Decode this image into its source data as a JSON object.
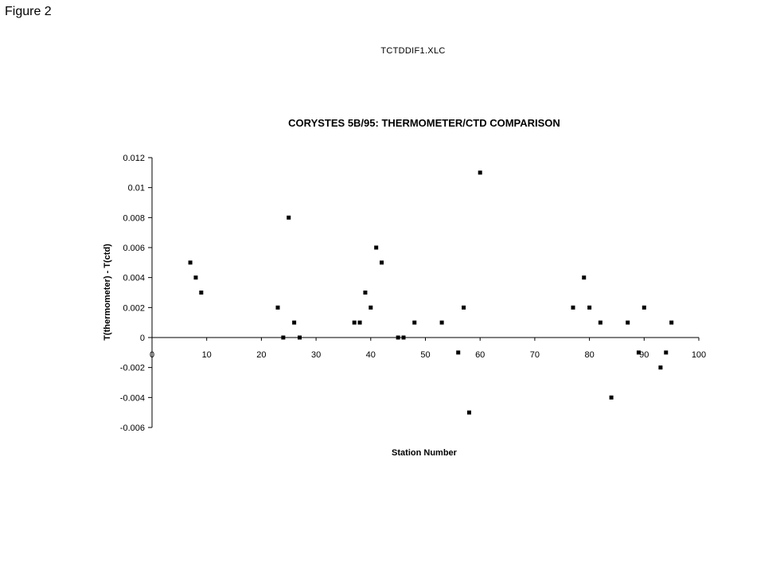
{
  "figure_label": "Figure 2",
  "file_name": "TCTDDIF1.XLC",
  "chart_data": {
    "type": "scatter",
    "title": "CORYSTES 5B/95: THERMOMETER/CTD COMPARISON",
    "xlabel": "Station Number",
    "ylabel": "T(thermometer) - T(ctd)",
    "xlim": [
      0,
      100
    ],
    "ylim": [
      -0.006,
      0.012
    ],
    "xticks": [
      0,
      10,
      20,
      30,
      40,
      50,
      60,
      70,
      80,
      90,
      100
    ],
    "xtick_labels": [
      "0",
      "10",
      "20",
      "30",
      "40",
      "50",
      "60",
      "70",
      "80",
      "90",
      "100"
    ],
    "yticks": [
      0.012,
      0.01,
      0.008,
      0.006,
      0.004,
      0.002,
      0,
      -0.002,
      -0.004,
      -0.006
    ],
    "ytick_labels": [
      "0.012",
      "0.01",
      "0.008",
      "0.006",
      "0.004",
      "0.002",
      "0",
      "-0.002",
      "-0.004",
      "-0.006"
    ],
    "grid": false,
    "marker": "square",
    "marker_color": "#000000",
    "x": [
      7,
      8,
      9,
      23,
      24,
      25,
      26,
      27,
      37,
      38,
      39,
      40,
      41,
      42,
      45,
      46,
      48,
      53,
      56,
      57,
      58,
      60,
      77,
      79,
      80,
      82,
      84,
      87,
      89,
      90,
      93,
      94,
      95
    ],
    "y": [
      0.005,
      0.004,
      0.003,
      0.002,
      0.0,
      0.008,
      0.001,
      0.0,
      0.001,
      0.001,
      0.003,
      0.002,
      0.006,
      0.005,
      0.0,
      0.0,
      0.001,
      0.001,
      -0.001,
      0.002,
      -0.005,
      0.011,
      0.002,
      0.004,
      0.002,
      0.001,
      -0.004,
      0.001,
      -0.001,
      0.002,
      -0.002,
      -0.001,
      0.001
    ]
  }
}
